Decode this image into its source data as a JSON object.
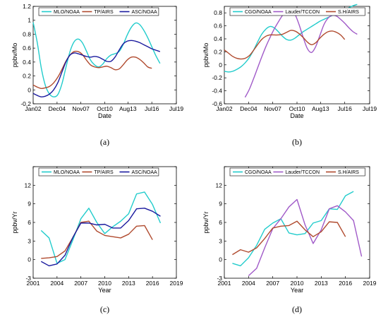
{
  "chart_data": [
    {
      "panel": "(a)",
      "type": "line",
      "xlabel": "Date",
      "ylabel": "ppbv/Mo",
      "xlim": [
        2002,
        2019.5
      ],
      "ylim": [
        -0.2,
        1.2
      ],
      "xticks": [
        2002,
        2004.92,
        2007.83,
        2010.75,
        2013.58,
        2016.5,
        2019.5
      ],
      "xticklabels": [
        "Jan02",
        "Dec04",
        "Nov07",
        "Oct10",
        "Aug13",
        "Jul16",
        "Jul19"
      ],
      "yticks": [
        -0.2,
        0,
        0.2,
        0.4,
        0.6,
        0.8,
        1,
        1.2
      ],
      "yticklabels": [
        "-0.2",
        "0",
        "0.2",
        "0.4",
        "0.6",
        "0.8",
        "1",
        "1.2"
      ],
      "legend_position": "top",
      "series": [
        {
          "name": "MLO/NOAA",
          "color": "#22cccc",
          "x": [
            2002,
            2002.5,
            2003,
            2003.5,
            2004,
            2004.5,
            2005,
            2005.5,
            2006,
            2006.5,
            2007,
            2007.5,
            2008,
            2008.5,
            2009,
            2009.5,
            2010,
            2010.5,
            2011,
            2011.5,
            2012,
            2012.5,
            2013,
            2013.5,
            2014,
            2014.5,
            2015,
            2015.5,
            2016,
            2016.5,
            2017,
            2017.5
          ],
          "y": [
            0.97,
            0.68,
            0.31,
            0.06,
            -0.06,
            -0.1,
            -0.07,
            0.08,
            0.32,
            0.55,
            0.69,
            0.73,
            0.68,
            0.56,
            0.43,
            0.36,
            0.33,
            0.37,
            0.45,
            0.5,
            0.52,
            0.55,
            0.65,
            0.79,
            0.9,
            0.96,
            0.94,
            0.86,
            0.75,
            0.62,
            0.49,
            0.38
          ]
        },
        {
          "name": "TP/AIRS",
          "color": "#b04a2e",
          "x": [
            2002,
            2002.5,
            2003,
            2003.5,
            2004,
            2004.5,
            2005,
            2005.5,
            2006,
            2006.5,
            2007,
            2007.5,
            2008,
            2008.5,
            2009,
            2009.5,
            2010,
            2010.5,
            2011,
            2011.5,
            2012,
            2012.5,
            2013,
            2013.5,
            2014,
            2014.5,
            2015,
            2015.5,
            2016,
            2016.5
          ],
          "y": [
            0.07,
            0.04,
            0.02,
            0.03,
            0.05,
            0.1,
            0.18,
            0.29,
            0.41,
            0.5,
            0.55,
            0.55,
            0.51,
            0.43,
            0.36,
            0.33,
            0.32,
            0.33,
            0.34,
            0.32,
            0.29,
            0.3,
            0.36,
            0.43,
            0.47,
            0.47,
            0.44,
            0.39,
            0.33,
            0.31
          ]
        },
        {
          "name": "ASC/NOAA",
          "color": "#1a1a9e",
          "x": [
            2002,
            2002.5,
            2003,
            2003.5,
            2004,
            2004.5,
            2005,
            2005.5,
            2006,
            2006.5,
            2007,
            2007.5,
            2008,
            2008.5,
            2009,
            2009.5,
            2010,
            2010.5,
            2011,
            2011.5,
            2012,
            2012.5,
            2013,
            2013.5,
            2014,
            2014.5,
            2015,
            2015.5,
            2016,
            2016.5,
            2017,
            2017.5
          ],
          "y": [
            -0.05,
            -0.08,
            -0.1,
            -0.09,
            -0.06,
            0.0,
            0.1,
            0.25,
            0.4,
            0.5,
            0.53,
            0.52,
            0.5,
            0.48,
            0.47,
            0.48,
            0.47,
            0.44,
            0.41,
            0.41,
            0.47,
            0.57,
            0.66,
            0.7,
            0.71,
            0.7,
            0.68,
            0.65,
            0.62,
            0.59,
            0.57,
            0.55
          ]
        }
      ]
    },
    {
      "panel": "(b)",
      "type": "line",
      "xlabel": "Date",
      "ylabel": "ppbv/Mo",
      "xlim": [
        2002,
        2019.5
      ],
      "ylim": [
        -0.6,
        0.9
      ],
      "xticks": [
        2002,
        2004.92,
        2007.83,
        2010.75,
        2013.58,
        2016.5,
        2019.5
      ],
      "xticklabels": [
        "Jan02",
        "Dec04",
        "Nov07",
        "Oct10",
        "Aug13",
        "Jul16",
        "Jul19"
      ],
      "yticks": [
        -0.6,
        -0.4,
        -0.2,
        0,
        0.2,
        0.4,
        0.6,
        0.8
      ],
      "yticklabels": [
        "-0.6",
        "-0.4",
        "-0.2",
        "0",
        "0.2",
        "0.4",
        "0.6",
        "0.8"
      ],
      "legend_position": "top",
      "series": [
        {
          "name": "CGO/NOAA",
          "color": "#22cccc",
          "x": [
            2002,
            2002.5,
            2003,
            2003.5,
            2004,
            2004.5,
            2005,
            2005.5,
            2006,
            2006.5,
            2007,
            2007.5,
            2008,
            2008.5,
            2009,
            2009.5,
            2010,
            2010.5,
            2011,
            2011.5,
            2012,
            2012.5,
            2013,
            2013.5,
            2014,
            2014.5,
            2015,
            2015.5,
            2016,
            2016.5,
            2017,
            2017.5,
            2018
          ],
          "y": [
            -0.1,
            -0.11,
            -0.1,
            -0.07,
            -0.03,
            0.03,
            0.11,
            0.22,
            0.35,
            0.47,
            0.55,
            0.59,
            0.57,
            0.51,
            0.44,
            0.39,
            0.38,
            0.41,
            0.46,
            0.51,
            0.55,
            0.59,
            0.63,
            0.67,
            0.7,
            0.73,
            0.76,
            0.79,
            0.82,
            0.85,
            0.88,
            0.91,
            0.93
          ]
        },
        {
          "name": "Lauder/TCCON",
          "color": "#a05ac8",
          "x": [
            2004.5,
            2005,
            2005.5,
            2006,
            2006.5,
            2007,
            2007.5,
            2008,
            2008.5,
            2009,
            2009.5,
            2010,
            2010.5,
            2011,
            2011.5,
            2012,
            2012.5,
            2013,
            2013.5,
            2014,
            2014.5,
            2015,
            2015.5,
            2016,
            2016.5,
            2017,
            2017.5,
            2018
          ],
          "y": [
            -0.5,
            -0.38,
            -0.22,
            -0.05,
            0.12,
            0.28,
            0.42,
            0.55,
            0.66,
            0.76,
            0.83,
            0.85,
            0.78,
            0.62,
            0.42,
            0.25,
            0.19,
            0.28,
            0.45,
            0.62,
            0.72,
            0.76,
            0.75,
            0.7,
            0.64,
            0.57,
            0.51,
            0.47
          ]
        },
        {
          "name": "S.H/AIRS",
          "color": "#b04a2e",
          "x": [
            2002,
            2002.5,
            2003,
            2003.5,
            2004,
            2004.5,
            2005,
            2005.5,
            2006,
            2006.5,
            2007,
            2007.5,
            2008,
            2008.5,
            2009,
            2009.5,
            2010,
            2010.5,
            2011,
            2011.5,
            2012,
            2012.5,
            2013,
            2013.5,
            2014,
            2014.5,
            2015,
            2015.5,
            2016,
            2016.5
          ],
          "y": [
            0.23,
            0.18,
            0.13,
            0.1,
            0.09,
            0.1,
            0.14,
            0.22,
            0.31,
            0.39,
            0.44,
            0.46,
            0.46,
            0.46,
            0.47,
            0.5,
            0.53,
            0.52,
            0.48,
            0.42,
            0.35,
            0.31,
            0.34,
            0.41,
            0.47,
            0.51,
            0.52,
            0.5,
            0.46,
            0.39
          ]
        }
      ]
    },
    {
      "panel": "(c)",
      "type": "line",
      "xlabel": "Year",
      "ylabel": "ppbv/Yr",
      "xlim": [
        2001,
        2019
      ],
      "ylim": [
        -3,
        15
      ],
      "xticks": [
        2001,
        2004,
        2007,
        2010,
        2013,
        2016,
        2019
      ],
      "xticklabels": [
        "2001",
        "2004",
        "2007",
        "2010",
        "2013",
        "2016",
        "2019"
      ],
      "yticks": [
        -3,
        0,
        3,
        6,
        9,
        12,
        15
      ],
      "yticklabels": [
        "-3",
        "0",
        "3",
        "6",
        "9",
        "12",
        ""
      ],
      "legend_position": "top",
      "series": [
        {
          "name": "MLO/NOAA",
          "color": "#22cccc",
          "x": [
            2002,
            2003,
            2004,
            2005,
            2006,
            2007,
            2008,
            2009,
            2010,
            2011,
            2012,
            2013,
            2014,
            2015,
            2016,
            2017
          ],
          "y": [
            4.7,
            3.5,
            -0.6,
            0.0,
            3.2,
            6.6,
            8.3,
            6.0,
            4.2,
            5.3,
            6.2,
            7.4,
            10.6,
            10.9,
            8.9,
            5.9
          ]
        },
        {
          "name": "TP/AIRS",
          "color": "#b04a2e",
          "x": [
            2002,
            2003,
            2004,
            2005,
            2006,
            2007,
            2008,
            2009,
            2010,
            2011,
            2012,
            2013,
            2014,
            2015,
            2016
          ],
          "y": [
            0.2,
            0.3,
            0.5,
            1.4,
            3.6,
            6.0,
            6.2,
            4.6,
            3.9,
            3.7,
            3.5,
            4.1,
            5.4,
            5.5,
            3.2
          ]
        },
        {
          "name": "ASC/NOAA",
          "color": "#1a1a9e",
          "x": [
            2002,
            2003,
            2004,
            2005,
            2006,
            2007,
            2008,
            2009,
            2010,
            2011,
            2012,
            2013,
            2014,
            2015,
            2016,
            2017
          ],
          "y": [
            -0.3,
            -1.0,
            -0.7,
            0.7,
            3.6,
            5.9,
            5.9,
            5.6,
            5.7,
            5.1,
            5.1,
            6.3,
            8.2,
            8.3,
            7.8,
            7.0
          ]
        }
      ]
    },
    {
      "panel": "(d)",
      "type": "line",
      "xlabel": "Year",
      "ylabel": "ppbv/Yr",
      "xlim": [
        2001,
        2019
      ],
      "ylim": [
        -3,
        15
      ],
      "xticks": [
        2001,
        2004,
        2007,
        2010,
        2013,
        2016,
        2019
      ],
      "xticklabels": [
        "2001",
        "2004",
        "2007",
        "2010",
        "2013",
        "2016",
        "2019"
      ],
      "yticks": [
        -3,
        0,
        3,
        6,
        9,
        12,
        15
      ],
      "yticklabels": [
        "-3",
        "0",
        "3",
        "6",
        "9",
        "12",
        ""
      ],
      "legend_position": "top",
      "series": [
        {
          "name": "CGO/NOAA",
          "color": "#22cccc",
          "x": [
            2002,
            2003,
            2004,
            2005,
            2006,
            2007,
            2008,
            2009,
            2010,
            2011,
            2012,
            2013,
            2014,
            2015,
            2016,
            2017
          ],
          "y": [
            -0.6,
            -1.0,
            0.3,
            2.3,
            4.9,
            5.9,
            6.6,
            4.3,
            4.0,
            4.2,
            5.9,
            6.3,
            8.2,
            8.1,
            10.3,
            11.0
          ]
        },
        {
          "name": "Lauder/TCCON",
          "color": "#a05ac8",
          "x": [
            2004,
            2005,
            2006,
            2007,
            2008,
            2009,
            2010,
            2011,
            2012,
            2013,
            2014,
            2015,
            2016,
            2017,
            2018
          ],
          "y": [
            -2.6,
            -1.4,
            1.9,
            5.0,
            6.6,
            8.5,
            9.7,
            5.6,
            2.6,
            4.8,
            8.2,
            8.7,
            7.7,
            6.3,
            0.5
          ]
        },
        {
          "name": "S.H/AIRS",
          "color": "#b04a2e",
          "x": [
            2002,
            2003,
            2004,
            2005,
            2006,
            2007,
            2008,
            2009,
            2010,
            2011,
            2012,
            2013,
            2014,
            2015,
            2016
          ],
          "y": [
            0.8,
            1.6,
            1.2,
            1.9,
            3.4,
            5.1,
            5.4,
            5.5,
            6.2,
            4.8,
            3.7,
            4.5,
            6.1,
            6.0,
            3.7
          ]
        }
      ]
    }
  ]
}
